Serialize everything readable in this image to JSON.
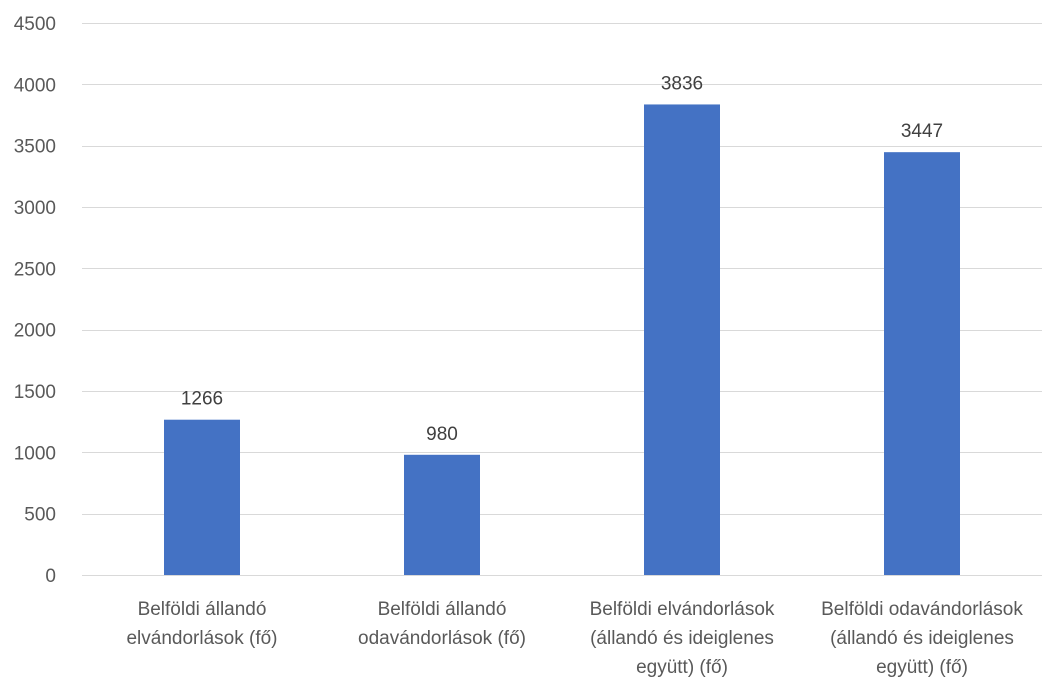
{
  "chart_data": {
    "type": "bar",
    "title": "",
    "xlabel": "",
    "ylabel": "",
    "ylim": [
      0,
      4500
    ],
    "yticks": [
      0,
      500,
      1000,
      1500,
      2000,
      2500,
      3000,
      3500,
      4000,
      4500
    ],
    "grid": true,
    "legend": "none",
    "categories": [
      [
        "Belföldi állandó",
        "elvándorlások (fő)"
      ],
      [
        "Belföldi állandó",
        "odavándorlások (fő)"
      ],
      [
        "Belföldi elvándorlások",
        "(állandó és ideiglenes",
        "együtt) (fő)"
      ],
      [
        "Belföldi odavándorlások",
        "(állandó és ideiglenes",
        "együtt) (fő)"
      ]
    ],
    "series": [
      {
        "values": [
          1266,
          980,
          3836,
          3447
        ],
        "color": "#4472c4"
      }
    ],
    "data_labels": [
      "1266",
      "980",
      "3836",
      "3447"
    ]
  }
}
